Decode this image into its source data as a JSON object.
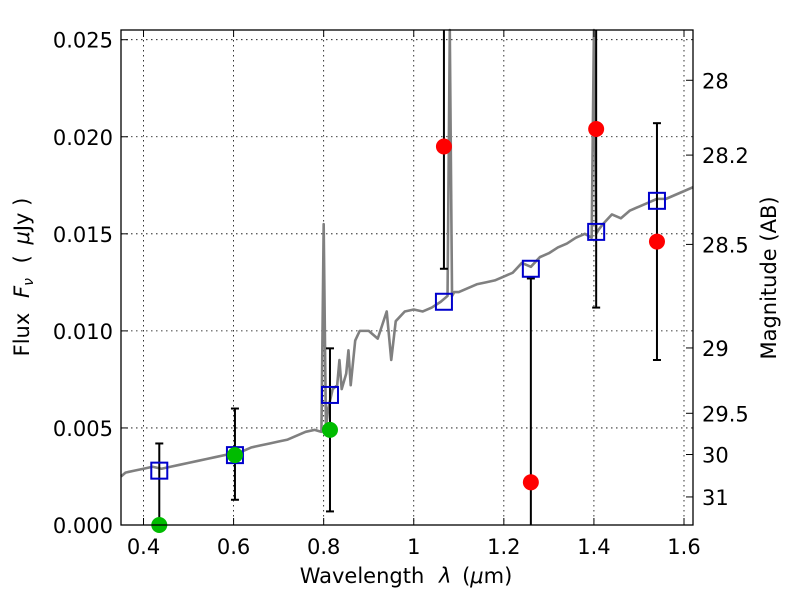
{
  "chart_data": {
    "type": "scatter",
    "xlabel_text": "Wavelength",
    "xlabel_symbol": "λ",
    "xlabel_unit_open": "(",
    "xlabel_unit_mu": "μ",
    "xlabel_unit_close": "m)",
    "ylabel_text": "Flux",
    "ylabel_symbol": "F",
    "ylabel_symbol_sub": "ν",
    "ylabel_unit_open": "(",
    "ylabel_unit_mu": "μ",
    "ylabel_unit_close": "Jy )",
    "y2label": "Magnitude (AB)",
    "xlim": [
      0.35,
      1.62
    ],
    "ylim": [
      0.0,
      0.0255
    ],
    "grid": true,
    "x_ticks": [
      {
        "v": 0.4,
        "label": "0.4"
      },
      {
        "v": 0.6,
        "label": "0.6"
      },
      {
        "v": 0.8,
        "label": "0.8"
      },
      {
        "v": 1.0,
        "label": "1"
      },
      {
        "v": 1.2,
        "label": "1.2"
      },
      {
        "v": 1.4,
        "label": "1.4"
      },
      {
        "v": 1.6,
        "label": "1.6"
      }
    ],
    "y_ticks": [
      {
        "v": 0.0,
        "label": "0.000"
      },
      {
        "v": 0.005,
        "label": "0.005"
      },
      {
        "v": 0.01,
        "label": "0.010"
      },
      {
        "v": 0.015,
        "label": "0.015"
      },
      {
        "v": 0.02,
        "label": "0.020"
      },
      {
        "v": 0.025,
        "label": "0.025"
      }
    ],
    "y2_ticks": [
      {
        "mag": 28,
        "label": "28"
      },
      {
        "mag": 28.2,
        "label": "28.2"
      },
      {
        "mag": 28.5,
        "label": "28.5"
      },
      {
        "mag": 29,
        "label": "29"
      },
      {
        "mag": 29.5,
        "label": "29.5"
      },
      {
        "mag": 30,
        "label": "30"
      },
      {
        "mag": 31,
        "label": "31"
      }
    ],
    "colors": {
      "spectrum": "#808080",
      "model_box": "#0000cc",
      "green_points": "#00bb00",
      "red_points": "#ff0000",
      "errorbar": "#000000"
    },
    "series": [
      {
        "kind": "spectrum",
        "x": [
          0.35,
          0.36,
          0.38,
          0.4,
          0.42,
          0.44,
          0.46,
          0.48,
          0.5,
          0.52,
          0.54,
          0.56,
          0.58,
          0.6,
          0.62,
          0.64,
          0.66,
          0.68,
          0.7,
          0.72,
          0.74,
          0.76,
          0.78,
          0.795,
          0.8,
          0.805,
          0.81,
          0.82,
          0.83,
          0.835,
          0.84,
          0.85,
          0.855,
          0.86,
          0.87,
          0.88,
          0.9,
          0.92,
          0.94,
          0.95,
          0.96,
          0.98,
          1.0,
          1.02,
          1.04,
          1.06,
          1.075,
          1.08,
          1.085,
          1.09,
          1.1,
          1.12,
          1.14,
          1.16,
          1.18,
          1.2,
          1.22,
          1.24,
          1.26,
          1.28,
          1.3,
          1.32,
          1.34,
          1.36,
          1.38,
          1.395,
          1.4,
          1.405,
          1.41,
          1.42,
          1.44,
          1.46,
          1.48,
          1.5,
          1.52,
          1.54,
          1.56,
          1.58,
          1.6,
          1.62
        ],
        "y": [
          0.0025,
          0.0027,
          0.0028,
          0.0029,
          0.003,
          0.0029,
          0.003,
          0.0031,
          0.0032,
          0.0033,
          0.0034,
          0.0035,
          0.0036,
          0.0037,
          0.0038,
          0.004,
          0.0041,
          0.0042,
          0.0043,
          0.0044,
          0.0046,
          0.0048,
          0.0049,
          0.0048,
          0.0155,
          0.005,
          0.006,
          0.007,
          0.0072,
          0.0085,
          0.007,
          0.0078,
          0.009,
          0.0072,
          0.0095,
          0.01,
          0.01,
          0.0096,
          0.011,
          0.0085,
          0.0105,
          0.011,
          0.0111,
          0.011,
          0.0112,
          0.0115,
          0.0118,
          0.026,
          0.0118,
          0.012,
          0.012,
          0.0122,
          0.0124,
          0.0125,
          0.0126,
          0.0128,
          0.013,
          0.0135,
          0.0133,
          0.0138,
          0.014,
          0.0143,
          0.0145,
          0.0148,
          0.015,
          0.0148,
          0.026,
          0.015,
          0.0152,
          0.0155,
          0.016,
          0.0158,
          0.0162,
          0.0164,
          0.0166,
          0.0168,
          0.0168,
          0.017,
          0.0172,
          0.0174
        ]
      },
      {
        "kind": "model_boxes",
        "x": [
          0.435,
          0.603,
          0.814,
          1.067,
          1.26,
          1.405,
          1.54
        ],
        "y": [
          0.0028,
          0.0036,
          0.0067,
          0.0115,
          0.0132,
          0.0151,
          0.0167
        ]
      },
      {
        "kind": "green_points",
        "x": [
          0.435,
          0.603,
          0.814
        ],
        "y": [
          0.0,
          0.0036,
          0.0049
        ],
        "yerr_low": [
          null,
          0.0013,
          0.0007
        ],
        "yerr_high": [
          0.0042,
          0.006,
          0.0091
        ]
      },
      {
        "kind": "red_points",
        "x": [
          1.067,
          1.26,
          1.405,
          1.54
        ],
        "y": [
          0.0195,
          0.0022,
          0.0204,
          0.0146
        ],
        "yerr_low": [
          0.0132,
          0.0,
          0.0112,
          0.0085
        ],
        "yerr_high": [
          0.0255,
          0.0127,
          0.0255,
          0.0207
        ]
      }
    ]
  }
}
